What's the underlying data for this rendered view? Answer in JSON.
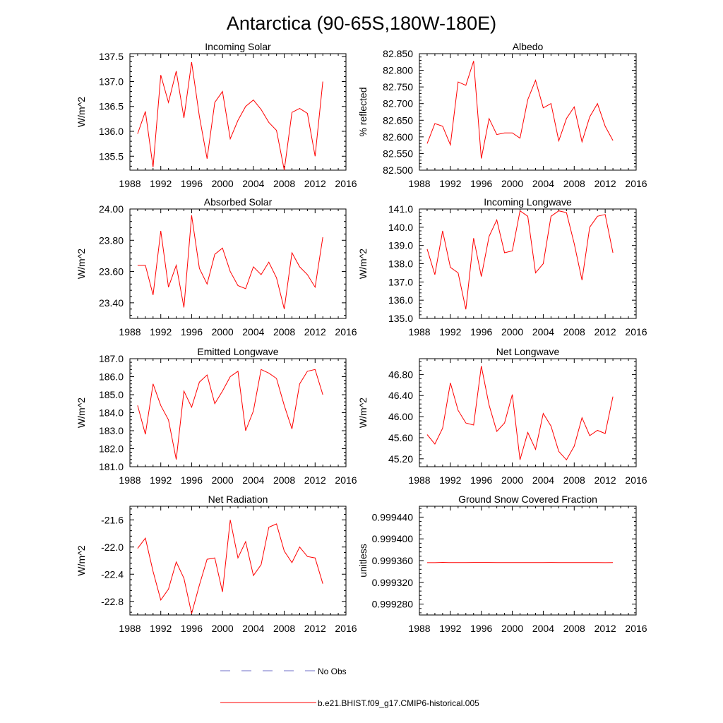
{
  "figure": {
    "title": "Antarctica (90-65S,180W-180E)",
    "legend": [
      {
        "label": "No Obs",
        "color": "#6f6fc8",
        "dashed": true
      },
      {
        "label": "b.e21.BHIST.f09_g17.CMIP6-historical.005",
        "color": "#ff0000",
        "dashed": false
      }
    ]
  },
  "chart_data": [
    {
      "type": "line",
      "title": "Incoming Solar",
      "ylabel": "W/m^2",
      "xlim": [
        1988,
        2016
      ],
      "xticks": [
        1988,
        1992,
        1996,
        2000,
        2004,
        2008,
        2012,
        2016
      ],
      "ylim": [
        135.22,
        137.56
      ],
      "yticks": [
        "135.5",
        "136.0",
        "136.5",
        "137.0",
        "137.5"
      ],
      "series": [
        {
          "color": "#ff0000",
          "x": [
            1989,
            1990,
            1991,
            1992,
            1993,
            1994,
            1995,
            1996,
            1997,
            1998,
            1999,
            2000,
            2001,
            2002,
            2003,
            2004,
            2005,
            2006,
            2007,
            2008,
            2009,
            2010,
            2011,
            2012,
            2013
          ],
          "y": [
            135.95,
            136.4,
            135.28,
            137.13,
            136.58,
            137.21,
            136.27,
            137.39,
            136.3,
            135.45,
            136.58,
            136.8,
            135.85,
            136.22,
            136.5,
            136.63,
            136.44,
            136.18,
            136.02,
            135.22,
            136.38,
            136.46,
            136.36,
            135.5,
            137.0
          ]
        }
      ]
    },
    {
      "type": "line",
      "title": "Albedo",
      "ylabel": "% reflected",
      "xlim": [
        1988,
        2016
      ],
      "xticks": [
        1988,
        1992,
        1996,
        2000,
        2004,
        2008,
        2012,
        2016
      ],
      "ylim": [
        82.5,
        82.85
      ],
      "yticks": [
        "82.500",
        "82.550",
        "82.600",
        "82.650",
        "82.700",
        "82.750",
        "82.800",
        "82.850"
      ],
      "series": [
        {
          "color": "#ff0000",
          "x": [
            1989,
            1990,
            1991,
            1992,
            1993,
            1994,
            1995,
            1996,
            1997,
            1998,
            1999,
            2000,
            2001,
            2002,
            2003,
            2004,
            2005,
            2006,
            2007,
            2008,
            2009,
            2010,
            2011,
            2012,
            2013
          ],
          "y": [
            82.58,
            82.64,
            82.632,
            82.576,
            82.765,
            82.755,
            82.828,
            82.535,
            82.655,
            82.607,
            82.612,
            82.612,
            82.596,
            82.712,
            82.77,
            82.687,
            82.7,
            82.588,
            82.655,
            82.69,
            82.585,
            82.66,
            82.7,
            82.632,
            82.589
          ]
        }
      ]
    },
    {
      "type": "line",
      "title": "Absorbed Solar",
      "ylabel": "W/m^2",
      "xlim": [
        1988,
        2016
      ],
      "xticks": [
        1988,
        1992,
        1996,
        2000,
        2004,
        2008,
        2012,
        2016
      ],
      "ylim": [
        23.3,
        24.0
      ],
      "yticks": [
        "23.40",
        "23.60",
        "23.80",
        "24.00"
      ],
      "series": [
        {
          "color": "#ff0000",
          "x": [
            1989,
            1990,
            1991,
            1992,
            1993,
            1994,
            1995,
            1996,
            1997,
            1998,
            1999,
            2000,
            2001,
            2002,
            2003,
            2004,
            2005,
            2006,
            2007,
            2008,
            2009,
            2010,
            2011,
            2012,
            2013
          ],
          "y": [
            23.64,
            23.64,
            23.45,
            23.86,
            23.5,
            23.64,
            23.37,
            23.96,
            23.62,
            23.52,
            23.71,
            23.75,
            23.6,
            23.51,
            23.49,
            23.63,
            23.58,
            23.66,
            23.56,
            23.36,
            23.72,
            23.63,
            23.58,
            23.5,
            23.82
          ]
        }
      ]
    },
    {
      "type": "line",
      "title": "Incoming Longwave",
      "ylabel": "W/m^2",
      "xlim": [
        1988,
        2016
      ],
      "xticks": [
        1988,
        1992,
        1996,
        2000,
        2004,
        2008,
        2012,
        2016
      ],
      "ylim": [
        135.0,
        141.0
      ],
      "yticks": [
        "135.0",
        "136.0",
        "137.0",
        "138.0",
        "139.0",
        "140.0",
        "141.0"
      ],
      "series": [
        {
          "color": "#ff0000",
          "x": [
            1989,
            1990,
            1991,
            1992,
            1993,
            1994,
            1995,
            1996,
            1997,
            1998,
            1999,
            2000,
            2001,
            2002,
            2003,
            2004,
            2005,
            2006,
            2007,
            2008,
            2009,
            2010,
            2011,
            2012,
            2013
          ],
          "y": [
            138.8,
            137.4,
            139.8,
            137.8,
            137.5,
            135.5,
            139.4,
            137.3,
            139.5,
            140.4,
            138.6,
            138.7,
            140.9,
            140.6,
            137.5,
            138.0,
            140.6,
            140.9,
            140.8,
            139.1,
            137.1,
            140.0,
            140.6,
            140.7,
            138.6
          ]
        }
      ]
    },
    {
      "type": "line",
      "title": "Emitted Longwave",
      "ylabel": "W/m^2",
      "xlim": [
        1988,
        2016
      ],
      "xticks": [
        1988,
        1992,
        1996,
        2000,
        2004,
        2008,
        2012,
        2016
      ],
      "ylim": [
        181.0,
        187.0
      ],
      "yticks": [
        "181.0",
        "182.0",
        "183.0",
        "184.0",
        "185.0",
        "186.0",
        "187.0"
      ],
      "series": [
        {
          "color": "#ff0000",
          "x": [
            1989,
            1990,
            1991,
            1992,
            1993,
            1994,
            1995,
            1996,
            1997,
            1998,
            1999,
            2000,
            2001,
            2002,
            2003,
            2004,
            2005,
            2006,
            2007,
            2008,
            2009,
            2010,
            2011,
            2012,
            2013
          ],
          "y": [
            184.4,
            182.8,
            185.6,
            184.4,
            183.6,
            181.4,
            185.2,
            184.3,
            185.7,
            186.1,
            184.5,
            185.2,
            186.0,
            186.3,
            183.0,
            184.1,
            186.4,
            186.2,
            185.9,
            184.4,
            183.1,
            185.6,
            186.3,
            186.4,
            185.0
          ]
        }
      ]
    },
    {
      "type": "line",
      "title": "Net Longwave",
      "ylabel": "W/m^2",
      "xlim": [
        1988,
        2016
      ],
      "xticks": [
        1988,
        1992,
        1996,
        2000,
        2004,
        2008,
        2012,
        2016
      ],
      "ylim": [
        45.05,
        47.1
      ],
      "yticks": [
        "45.20",
        "45.60",
        "46.00",
        "46.40",
        "46.80"
      ],
      "series": [
        {
          "color": "#ff0000",
          "x": [
            1989,
            1990,
            1991,
            1992,
            1993,
            1994,
            1995,
            1996,
            1997,
            1998,
            1999,
            2000,
            2001,
            2002,
            2003,
            2004,
            2005,
            2006,
            2007,
            2008,
            2009,
            2010,
            2011,
            2012,
            2013
          ],
          "y": [
            45.66,
            45.48,
            45.78,
            46.64,
            46.12,
            45.88,
            45.84,
            46.96,
            46.22,
            45.72,
            45.88,
            46.42,
            45.18,
            45.7,
            45.38,
            46.06,
            45.82,
            45.34,
            45.18,
            45.44,
            45.98,
            45.64,
            45.74,
            45.68,
            46.38
          ]
        }
      ]
    },
    {
      "type": "line",
      "title": "Net Radiation",
      "ylabel": "W/m^2",
      "xlim": [
        1988,
        2016
      ],
      "xticks": [
        1988,
        1992,
        1996,
        2000,
        2004,
        2008,
        2012,
        2016
      ],
      "ylim": [
        -23.0,
        -21.4
      ],
      "yticks": [
        "-22.8",
        "-22.4",
        "-22.0",
        "-21.6"
      ],
      "series": [
        {
          "color": "#ff0000",
          "x": [
            1989,
            1990,
            1991,
            1992,
            1993,
            1994,
            1995,
            1996,
            1997,
            1998,
            1999,
            2000,
            2001,
            2002,
            2003,
            2004,
            2005,
            2006,
            2007,
            2008,
            2009,
            2010,
            2011,
            2012,
            2013
          ],
          "y": [
            -22.02,
            -21.87,
            -22.36,
            -22.78,
            -22.62,
            -22.22,
            -22.46,
            -22.98,
            -22.56,
            -22.18,
            -22.16,
            -22.66,
            -21.6,
            -22.16,
            -21.92,
            -22.42,
            -22.26,
            -21.71,
            -21.66,
            -22.06,
            -22.23,
            -22.0,
            -22.14,
            -22.16,
            -22.54
          ]
        }
      ]
    },
    {
      "type": "line",
      "title": "Ground Snow Covered Fraction",
      "ylabel": "unitless",
      "xlim": [
        1988,
        2016
      ],
      "xticks": [
        1988,
        1992,
        1996,
        2000,
        2004,
        2008,
        2012,
        2016
      ],
      "ylim": [
        0.99926,
        0.99946
      ],
      "yticks": [
        "0.999280",
        "0.999320",
        "0.999360",
        "0.999400",
        "0.999440"
      ],
      "series": [
        {
          "color": "#ff0000",
          "x": [
            1989,
            1990,
            1991,
            1992,
            1993,
            1994,
            1995,
            1996,
            1997,
            1998,
            1999,
            2000,
            2001,
            2002,
            2003,
            2004,
            2005,
            2006,
            2007,
            2008,
            2009,
            2010,
            2011,
            2012,
            2013
          ],
          "y": [
            0.9993562,
            0.9993562,
            0.9993567,
            0.9993563,
            0.9993563,
            0.9993565,
            0.9993566,
            0.9993566,
            0.9993566,
            0.9993565,
            0.9993565,
            0.9993564,
            0.9993564,
            0.9993563,
            0.9993565,
            0.9993565,
            0.9993566,
            0.9993565,
            0.9993564,
            0.9993564,
            0.9993563,
            0.9993565,
            0.9993564,
            0.9993562,
            0.9993565
          ]
        }
      ]
    }
  ]
}
